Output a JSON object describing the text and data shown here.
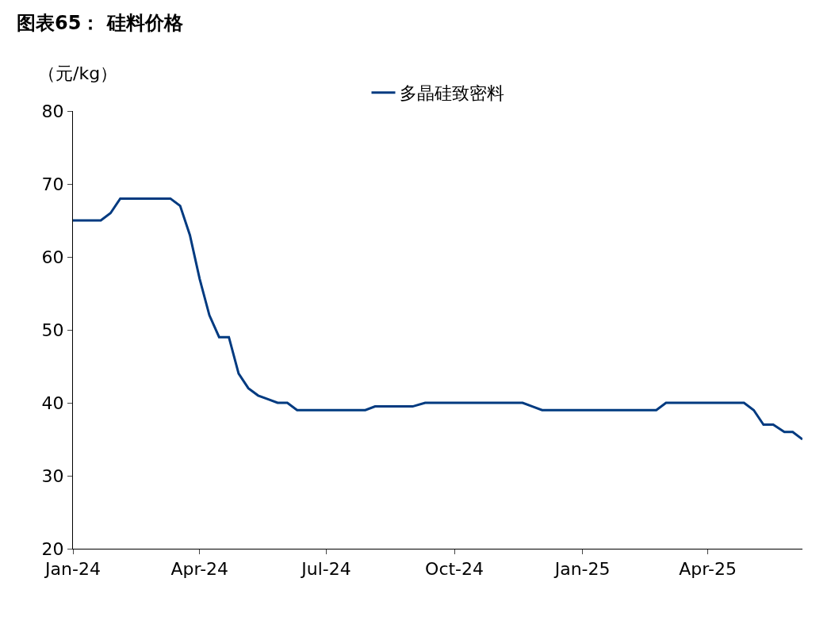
{
  "chart_data": {
    "type": "line",
    "title": "图表65： 硅料价格",
    "ylabel": "（元/kg）",
    "x": [
      "2024-01-01",
      "2024-01-21",
      "2024-01-28",
      "2024-02-04",
      "2024-03-11",
      "2024-03-18",
      "2024-03-25",
      "2024-04-01",
      "2024-04-08",
      "2024-04-15",
      "2024-04-22",
      "2024-04-29",
      "2024-05-06",
      "2024-05-13",
      "2024-05-20",
      "2024-05-27",
      "2024-06-03",
      "2024-06-10",
      "2024-07-29",
      "2024-08-05",
      "2024-09-01",
      "2024-09-10",
      "2024-11-19",
      "2024-11-26",
      "2024-12-03",
      "2025-02-23",
      "2025-03-02",
      "2025-04-27",
      "2025-05-04",
      "2025-05-11",
      "2025-05-18",
      "2025-05-26",
      "2025-06-01",
      "2025-06-08"
    ],
    "series": [
      {
        "name": "多晶硅致密料",
        "color": "#003a80",
        "values": [
          65,
          65,
          66,
          68,
          68,
          67,
          63,
          57,
          52,
          49,
          49,
          44,
          42,
          41,
          40.5,
          40,
          40,
          39,
          39,
          39.5,
          39.5,
          40,
          40,
          39.5,
          39,
          39,
          40,
          40,
          39,
          37,
          37,
          36,
          36,
          35
        ]
      }
    ],
    "xlim": [
      "2024-01-01",
      "2025-06-08"
    ],
    "xticks": [
      {
        "value": "2024-01-01",
        "label": "Jan-24"
      },
      {
        "value": "2024-04-01",
        "label": "Apr-24"
      },
      {
        "value": "2024-07-01",
        "label": "Jul-24"
      },
      {
        "value": "2024-10-01",
        "label": "Oct-24"
      },
      {
        "value": "2025-01-01",
        "label": "Jan-25"
      },
      {
        "value": "2025-04-01",
        "label": "Apr-25"
      }
    ],
    "ylim": [
      20,
      80
    ],
    "yticks": [
      20,
      30,
      40,
      50,
      60,
      70,
      80
    ],
    "legend": "top",
    "marker": "none",
    "line_style": "solid"
  }
}
